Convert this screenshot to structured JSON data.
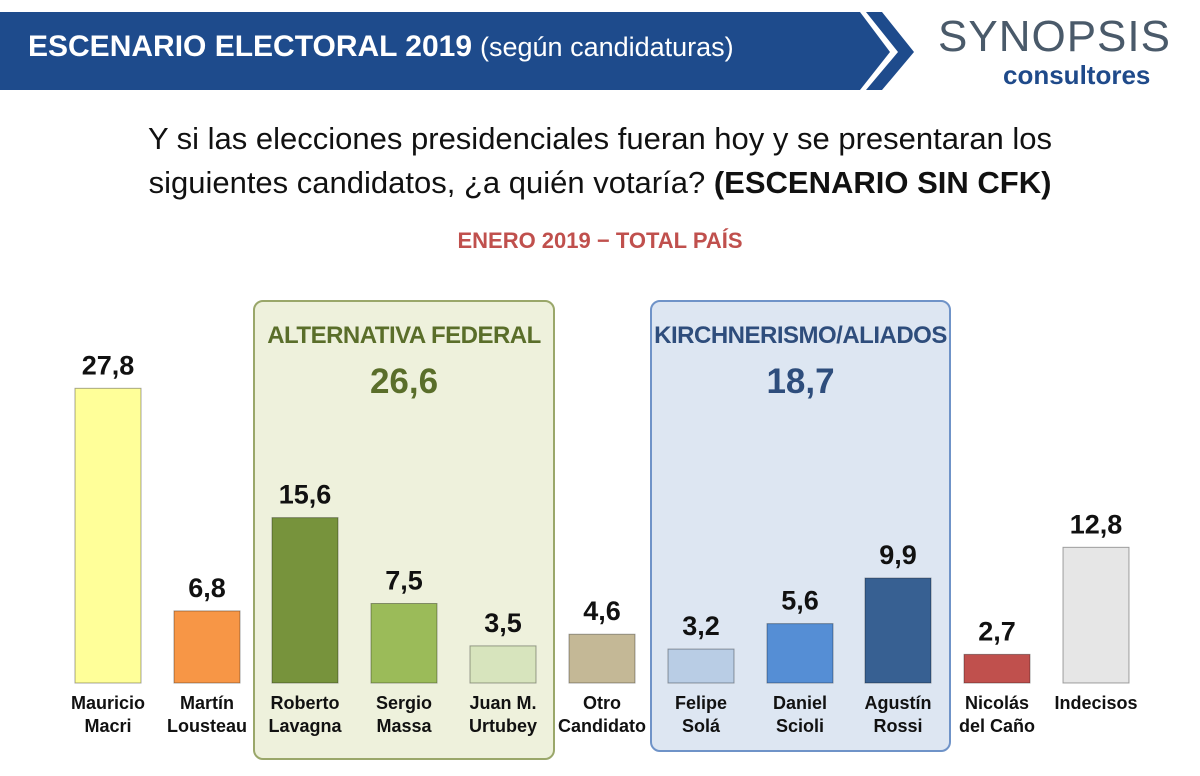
{
  "header": {
    "title": "ESCENARIO ELECTORAL 2019",
    "subtitle": "(según candidaturas)",
    "band_color": "#1e4b8c"
  },
  "logo": {
    "name": "SYNOPSIS",
    "tagline": "consultores"
  },
  "question": {
    "line1": "Y si las elecciones presidenciales fueran hoy y se presentaran los",
    "line2": "siguientes candidatos, ¿a quién votaría?",
    "emphasis": "(ESCENARIO SIN CFK)"
  },
  "period": "ENERO 2019 − TOTAL PAÍS",
  "groups": [
    {
      "label": "ALTERNATIVA FEDERAL",
      "total": "26,6",
      "color": "#9aa76a"
    },
    {
      "label": "KIRCHNERISMO/ALIADOS",
      "total": "18,7",
      "color": "#6f93c8"
    }
  ],
  "chart_data": {
    "type": "bar",
    "categories": [
      [
        "Mauricio",
        "Macri"
      ],
      [
        "Martín",
        "Lousteau"
      ],
      [
        "Roberto",
        "Lavagna"
      ],
      [
        "Sergio",
        "Massa"
      ],
      [
        "Juan M.",
        "Urtubey"
      ],
      [
        "Otro",
        "Candidato"
      ],
      [
        "Felipe",
        "Solá"
      ],
      [
        "Daniel",
        "Scioli"
      ],
      [
        "Agustín",
        "Rossi"
      ],
      [
        "Nicolás",
        "del Caño"
      ],
      [
        "Indecisos"
      ]
    ],
    "values": [
      27.8,
      6.8,
      15.6,
      7.5,
      3.5,
      4.6,
      3.2,
      5.6,
      9.9,
      2.7,
      12.8
    ],
    "value_labels": [
      "27,8",
      "6,8",
      "15,6",
      "7,5",
      "3,5",
      "4,6",
      "3,2",
      "5,6",
      "9,9",
      "2,7",
      "12,8"
    ],
    "colors": [
      "#ffff99",
      "#f79646",
      "#77933c",
      "#9bbb59",
      "#d7e4bd",
      "#c4b896",
      "#b9cde5",
      "#558ed5",
      "#376092",
      "#c0504d",
      "#e6e6e6"
    ],
    "ylim": [
      0,
      30
    ]
  }
}
